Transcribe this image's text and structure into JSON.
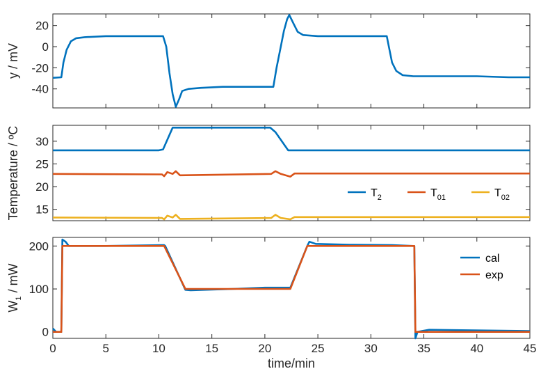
{
  "chart_data": [
    {
      "type": "line",
      "ylabel": "y / mV",
      "xlim": [
        0,
        45
      ],
      "ylim": [
        -58,
        31
      ],
      "yticks": [
        -40,
        -20,
        0,
        20
      ],
      "series": [
        {
          "color": "#0072BD",
          "points": [
            [
              0,
              -29.5
            ],
            [
              0.8,
              -29
            ],
            [
              1.0,
              -15
            ],
            [
              1.3,
              -3
            ],
            [
              1.7,
              5
            ],
            [
              2.2,
              8
            ],
            [
              3,
              9
            ],
            [
              5,
              10
            ],
            [
              8,
              10
            ],
            [
              10.4,
              10
            ],
            [
              10.7,
              0
            ],
            [
              11.0,
              -25
            ],
            [
              11.3,
              -45
            ],
            [
              11.6,
              -57
            ],
            [
              11.9,
              -50
            ],
            [
              12.2,
              -42
            ],
            [
              12.8,
              -40
            ],
            [
              14,
              -39
            ],
            [
              16,
              -38
            ],
            [
              18,
              -38
            ],
            [
              20,
              -38
            ],
            [
              20.8,
              -38
            ],
            [
              21.1,
              -20
            ],
            [
              21.5,
              0
            ],
            [
              21.8,
              15
            ],
            [
              22.1,
              26
            ],
            [
              22.3,
              30
            ],
            [
              22.7,
              22
            ],
            [
              23.1,
              14
            ],
            [
              23.6,
              11
            ],
            [
              25,
              10
            ],
            [
              28,
              10
            ],
            [
              31.5,
              10
            ],
            [
              31.7,
              0
            ],
            [
              32,
              -15
            ],
            [
              32.4,
              -23
            ],
            [
              33,
              -27
            ],
            [
              34,
              -28
            ],
            [
              36,
              -28
            ],
            [
              40,
              -28
            ],
            [
              43,
              -29
            ],
            [
              45,
              -29
            ]
          ]
        }
      ]
    },
    {
      "type": "line",
      "ylabel": "Temperature / ºC",
      "xlim": [
        0,
        45
      ],
      "ylim": [
        12.5,
        33.5
      ],
      "yticks": [
        15,
        20,
        25,
        30
      ],
      "legend": {
        "location": "bottom-right",
        "orientation": "horizontal",
        "entries": [
          "T_2",
          "T_01",
          "T_02"
        ]
      },
      "series": [
        {
          "name": "T_2",
          "name_main": "T",
          "name_sub": "2",
          "color": "#0072BD",
          "points": [
            [
              0,
              28
            ],
            [
              10,
              28
            ],
            [
              10.4,
              28.2
            ],
            [
              11.3,
              33
            ],
            [
              12,
              33
            ],
            [
              20.5,
              33
            ],
            [
              21,
              32
            ],
            [
              22.2,
              28
            ],
            [
              23,
              28
            ],
            [
              45,
              28
            ]
          ]
        },
        {
          "name": "T_01",
          "name_main": "T",
          "name_sub": "01",
          "color": "#D95319",
          "points": [
            [
              0,
              22.8
            ],
            [
              10.3,
              22.7
            ],
            [
              10.5,
              22.3
            ],
            [
              10.8,
              23.2
            ],
            [
              11.3,
              22.8
            ],
            [
              11.6,
              23.4
            ],
            [
              12,
              22.5
            ],
            [
              20.6,
              22.8
            ],
            [
              21,
              23.4
            ],
            [
              21.5,
              22.8
            ],
            [
              22.4,
              22.2
            ],
            [
              22.8,
              22.9
            ],
            [
              45,
              22.9
            ]
          ]
        },
        {
          "name": "T_02",
          "name_main": "T",
          "name_sub": "02",
          "color": "#EDB120",
          "points": [
            [
              0,
              13.2
            ],
            [
              10.3,
              13.1
            ],
            [
              10.5,
              12.8
            ],
            [
              10.8,
              13.6
            ],
            [
              11.3,
              13.2
            ],
            [
              11.6,
              13.8
            ],
            [
              12,
              12.9
            ],
            [
              20.6,
              13.1
            ],
            [
              21,
              13.8
            ],
            [
              21.5,
              13.1
            ],
            [
              22.4,
              12.8
            ],
            [
              22.8,
              13.3
            ],
            [
              45,
              13.3
            ]
          ]
        }
      ]
    },
    {
      "type": "line",
      "ylabel": "W_1 / mW",
      "ylabel_main": "W",
      "ylabel_sub": "1",
      "ylabel_tail": " / mW",
      "xlabel": "time/min",
      "xlim": [
        0,
        45
      ],
      "ylim": [
        -15,
        220
      ],
      "yticks": [
        0,
        100,
        200
      ],
      "xticks": [
        0,
        5,
        10,
        15,
        20,
        25,
        30,
        35,
        40,
        45
      ],
      "legend": {
        "location": "top-right",
        "entries": [
          "cal",
          "exp"
        ]
      },
      "series": [
        {
          "name": "cal",
          "color": "#0072BD",
          "points": [
            [
              0,
              8
            ],
            [
              0.3,
              0
            ],
            [
              0.8,
              0
            ],
            [
              0.9,
              215
            ],
            [
              1.2,
              210
            ],
            [
              1.5,
              200
            ],
            [
              5,
              200
            ],
            [
              10.5,
              202
            ],
            [
              10.6,
              200
            ],
            [
              12.5,
              98
            ],
            [
              13,
              97
            ],
            [
              17,
              100
            ],
            [
              20,
              103
            ],
            [
              22.4,
              103
            ],
            [
              24,
              200
            ],
            [
              24.2,
              210
            ],
            [
              24.8,
              205
            ],
            [
              28,
              203
            ],
            [
              32,
              202
            ],
            [
              34,
              200
            ],
            [
              34.1,
              200
            ],
            [
              34.2,
              -15
            ],
            [
              34.4,
              0
            ],
            [
              35.5,
              5
            ],
            [
              45,
              2
            ]
          ]
        },
        {
          "name": "exp",
          "color": "#D95319",
          "points": [
            [
              0,
              0
            ],
            [
              0.8,
              0
            ],
            [
              0.9,
              200
            ],
            [
              10.5,
              200
            ],
            [
              12.5,
              100
            ],
            [
              22.4,
              100
            ],
            [
              24,
              200
            ],
            [
              34.1,
              200
            ],
            [
              34.2,
              0
            ],
            [
              45,
              0
            ]
          ]
        }
      ]
    }
  ]
}
